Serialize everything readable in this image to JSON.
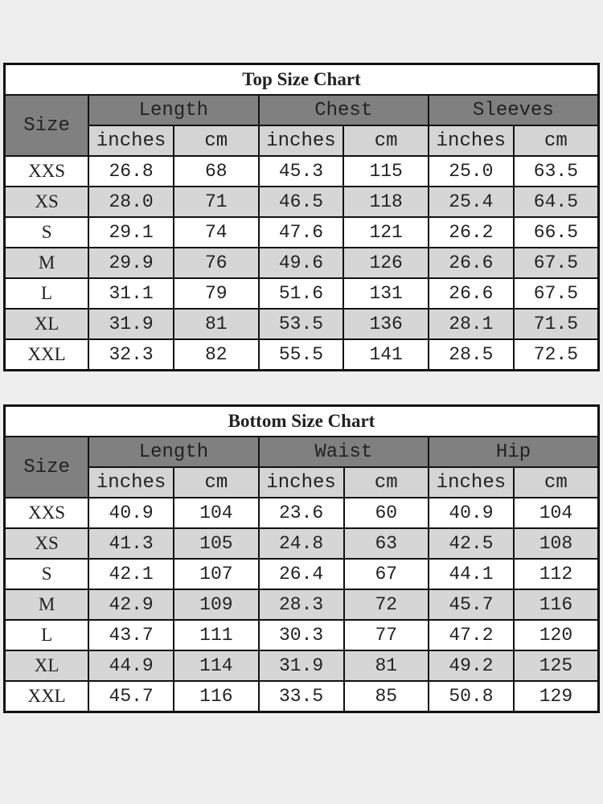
{
  "tables": [
    {
      "title": "Top Size Chart",
      "size_label": "Size",
      "groups": [
        "Length",
        "Chest",
        "Sleeves"
      ],
      "units": [
        "inches",
        "cm"
      ],
      "rows": [
        [
          "XXS",
          "26.8",
          "68",
          "45.3",
          "115",
          "25.0",
          "63.5"
        ],
        [
          "XS",
          "28.0",
          "71",
          "46.5",
          "118",
          "25.4",
          "64.5"
        ],
        [
          "S",
          "29.1",
          "74",
          "47.6",
          "121",
          "26.2",
          "66.5"
        ],
        [
          "M",
          "29.9",
          "76",
          "49.6",
          "126",
          "26.6",
          "67.5"
        ],
        [
          "L",
          "31.1",
          "79",
          "51.6",
          "131",
          "26.6",
          "67.5"
        ],
        [
          "XL",
          "31.9",
          "81",
          "53.5",
          "136",
          "28.1",
          "71.5"
        ],
        [
          "XXL",
          "32.3",
          "82",
          "55.5",
          "141",
          "28.5",
          "72.5"
        ]
      ]
    },
    {
      "title": "Bottom Size Chart",
      "size_label": "Size",
      "groups": [
        "Length",
        "Waist",
        "Hip"
      ],
      "units": [
        "inches",
        "cm"
      ],
      "rows": [
        [
          "XXS",
          "40.9",
          "104",
          "23.6",
          "60",
          "40.9",
          "104"
        ],
        [
          "XS",
          "41.3",
          "105",
          "24.8",
          "63",
          "42.5",
          "108"
        ],
        [
          "S",
          "42.1",
          "107",
          "26.4",
          "67",
          "44.1",
          "112"
        ],
        [
          "M",
          "42.9",
          "109",
          "28.3",
          "72",
          "45.7",
          "116"
        ],
        [
          "L",
          "43.7",
          "111",
          "30.3",
          "77",
          "47.2",
          "120"
        ],
        [
          "XL",
          "44.9",
          "114",
          "31.9",
          "81",
          "49.2",
          "125"
        ],
        [
          "XXL",
          "45.7",
          "116",
          "33.5",
          "85",
          "50.8",
          "129"
        ]
      ]
    }
  ],
  "colors": {
    "header": "#808080",
    "subheader": "#d4d4d4",
    "alt_row": "#d6d6d6",
    "border": "#111111"
  }
}
